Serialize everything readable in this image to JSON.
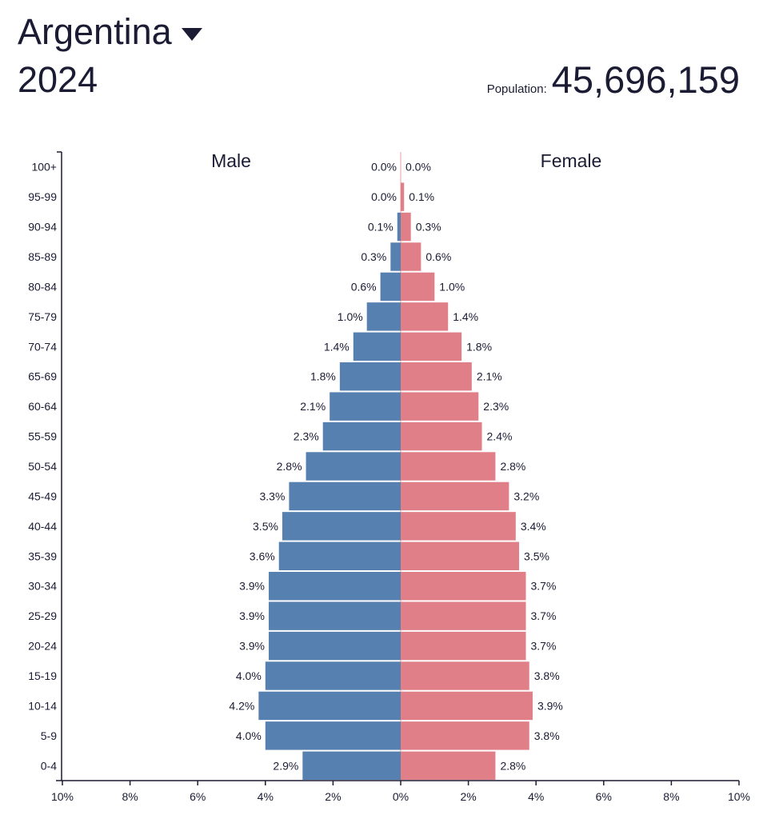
{
  "header": {
    "country": "Argentina",
    "year": "2024",
    "population_label": "Population:",
    "population_value": "45,696,159"
  },
  "chart_data": {
    "type": "bar",
    "orientation": "horizontal-pyramid",
    "categories": [
      "100+",
      "95-99",
      "90-94",
      "85-89",
      "80-84",
      "75-79",
      "70-74",
      "65-69",
      "60-64",
      "55-59",
      "50-54",
      "45-49",
      "40-44",
      "35-39",
      "30-34",
      "25-29",
      "20-24",
      "15-19",
      "10-14",
      "5-9",
      "0-4"
    ],
    "series": [
      {
        "name": "Male",
        "color": "#5580b0",
        "values": [
          0.0,
          0.0,
          0.1,
          0.3,
          0.6,
          1.0,
          1.4,
          1.8,
          2.1,
          2.3,
          2.8,
          3.3,
          3.5,
          3.6,
          3.9,
          3.9,
          3.9,
          4.0,
          4.2,
          4.0,
          2.9
        ]
      },
      {
        "name": "Female",
        "color": "#e07f88",
        "values": [
          0.0,
          0.1,
          0.3,
          0.6,
          1.0,
          1.4,
          1.8,
          2.1,
          2.3,
          2.4,
          2.8,
          3.2,
          3.4,
          3.5,
          3.7,
          3.7,
          3.7,
          3.8,
          3.9,
          3.8,
          2.8
        ]
      }
    ],
    "xlim": [
      -10,
      10
    ],
    "x_ticks": [
      "10%",
      "8%",
      "6%",
      "4%",
      "2%",
      "0%",
      "2%",
      "4%",
      "6%",
      "8%",
      "10%"
    ],
    "unit": "%",
    "grid": false
  }
}
